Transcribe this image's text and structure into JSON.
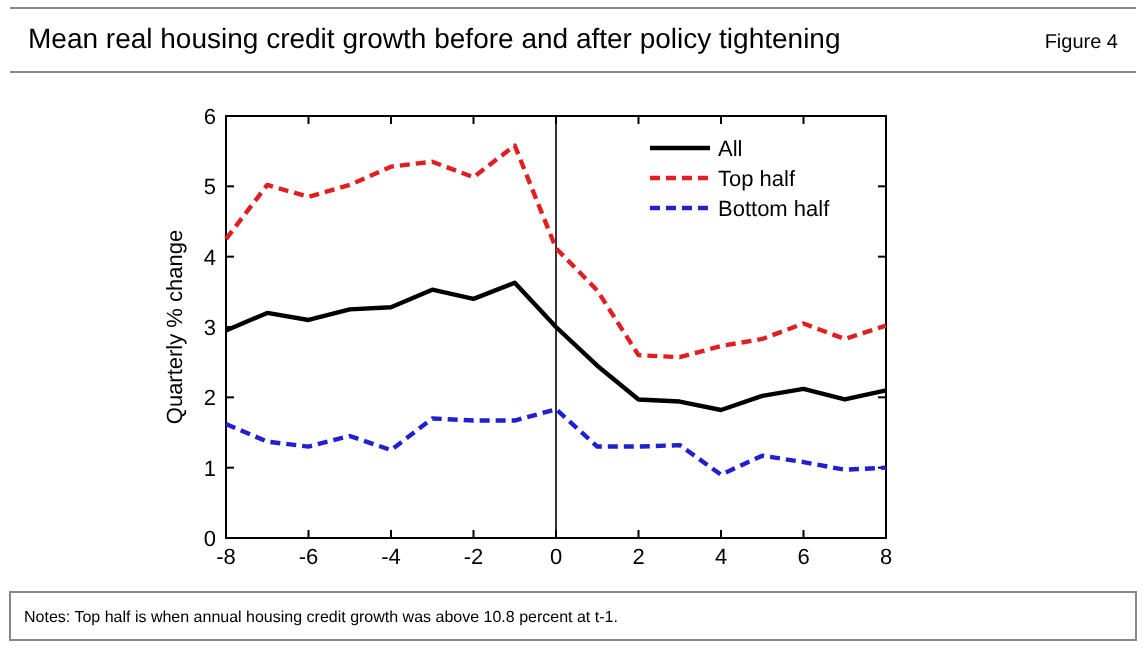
{
  "chart_data": {
    "type": "line",
    "title": "Mean real housing credit growth before and after policy tightening",
    "ylabel": "Quarterly % change",
    "annotations": [
      "Figure 4",
      "Notes: Top half is when annual housing credit growth was above 10.8 percent at t-1."
    ],
    "x": [
      -8,
      -7,
      -6,
      -5,
      -4,
      -3,
      -2,
      -1,
      0,
      1,
      2,
      3,
      4,
      5,
      6,
      7,
      8
    ],
    "series": [
      {
        "name": "All",
        "color": "#000000",
        "line_style": "solid",
        "values": [
          2.95,
          3.2,
          3.1,
          3.25,
          3.28,
          3.53,
          3.4,
          3.63,
          3.0,
          2.45,
          1.97,
          1.94,
          1.82,
          2.02,
          2.12,
          1.97,
          2.1
        ]
      },
      {
        "name": "Top half",
        "color": "#e02020",
        "line_style": "dashed",
        "values": [
          4.25,
          5.02,
          4.85,
          5.02,
          5.28,
          5.35,
          5.13,
          5.58,
          4.12,
          3.52,
          2.6,
          2.57,
          2.73,
          2.83,
          3.05,
          2.83,
          3.02
        ]
      },
      {
        "name": "Bottom half",
        "color": "#2020d0",
        "line_style": "dashed",
        "values": [
          1.62,
          1.37,
          1.3,
          1.45,
          1.25,
          1.7,
          1.67,
          1.67,
          1.83,
          1.3,
          1.3,
          1.32,
          0.9,
          1.17,
          1.08,
          0.97,
          1.0
        ]
      }
    ],
    "xlim": [
      -8,
      8
    ],
    "xticks": [
      -8,
      -6,
      -4,
      -2,
      0,
      2,
      4,
      6,
      8
    ],
    "ylim": [
      0,
      6
    ],
    "yticks": [
      0,
      1,
      2,
      3,
      4,
      5,
      6
    ],
    "ref_lines": [
      {
        "axis": "x",
        "value": 0,
        "color": "#000000"
      }
    ],
    "grid": false,
    "legend": "top right",
    "marker": "none"
  }
}
